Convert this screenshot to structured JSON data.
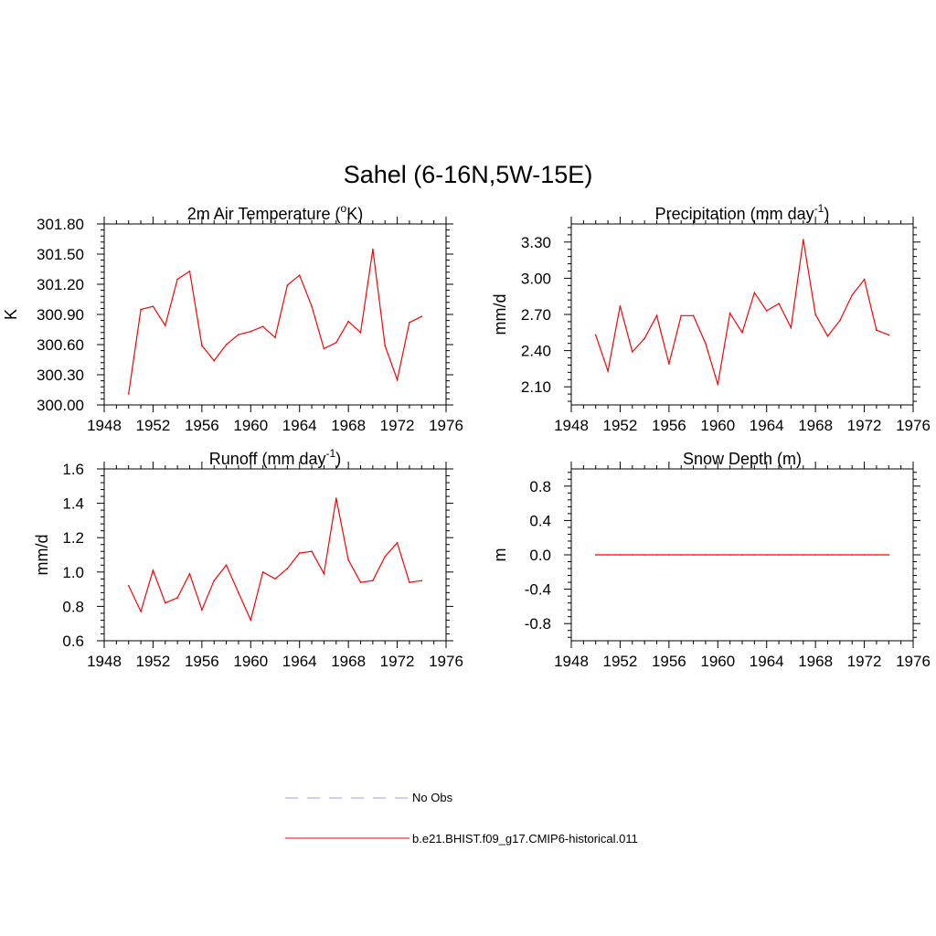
{
  "figure": {
    "title": "Sahel (6-16N,5W-15E)"
  },
  "colors": {
    "series": "#ff0000",
    "obs": "#9999ff",
    "axis": "#000000"
  },
  "legend": {
    "placement": "bottom-center",
    "entries": [
      {
        "label": "No Obs",
        "style": "dashed",
        "color": "#9999ff"
      },
      {
        "label": "b.e21.BHIST.f09_g17.CMIP6-historical.011",
        "style": "solid",
        "color": "#ff0000"
      }
    ]
  },
  "chart_data": [
    {
      "type": "line",
      "title": "2m Air Temperature (",
      "title_super": "o",
      "title_tail": "K)",
      "xlabel": "",
      "ylabel": "K",
      "xlim": [
        1948,
        1976
      ],
      "xticks": [
        "1948",
        "1952",
        "1956",
        "1960",
        "1964",
        "1968",
        "1972",
        "1976"
      ],
      "ylim": [
        300.0,
        301.8
      ],
      "yticks": [
        "300.00",
        "300.30",
        "300.60",
        "300.90",
        "301.20",
        "301.50",
        "301.80"
      ],
      "grid": false,
      "series": [
        {
          "x": [
            1950,
            1951,
            1952,
            1953,
            1954,
            1955,
            1956,
            1957,
            1958,
            1959,
            1960,
            1961,
            1962,
            1963,
            1964,
            1965,
            1966,
            1967,
            1968,
            1969,
            1970,
            1971,
            1972,
            1973,
            1974
          ],
          "values": [
            300.11,
            300.95,
            300.98,
            300.79,
            301.25,
            301.33,
            300.59,
            300.44,
            300.6,
            300.7,
            300.73,
            300.78,
            300.67,
            301.19,
            301.29,
            300.98,
            300.56,
            300.62,
            300.83,
            300.72,
            301.55,
            300.59,
            300.25,
            300.82,
            300.88
          ]
        }
      ]
    },
    {
      "type": "line",
      "title": "Precipitation (mm day",
      "title_super": "-1",
      "title_tail": ")",
      "xlabel": "",
      "ylabel": "mm/d",
      "xlim": [
        1948,
        1976
      ],
      "xticks": [
        "1948",
        "1952",
        "1956",
        "1960",
        "1964",
        "1968",
        "1972",
        "1976"
      ],
      "ylim": [
        1.95,
        3.45
      ],
      "yticks": [
        "2.10",
        "2.40",
        "2.70",
        "3.00",
        "3.30"
      ],
      "grid": false,
      "series": [
        {
          "x": [
            1950,
            1951,
            1952,
            1953,
            1954,
            1955,
            1956,
            1957,
            1958,
            1959,
            1960,
            1961,
            1962,
            1963,
            1964,
            1965,
            1966,
            1967,
            1968,
            1969,
            1970,
            1971,
            1972,
            1973,
            1974
          ],
          "values": [
            2.53,
            2.23,
            2.77,
            2.39,
            2.5,
            2.69,
            2.29,
            2.69,
            2.69,
            2.46,
            2.12,
            2.71,
            2.55,
            2.88,
            2.73,
            2.79,
            2.59,
            3.32,
            2.7,
            2.52,
            2.65,
            2.86,
            2.99,
            2.57,
            2.53
          ]
        }
      ]
    },
    {
      "type": "line",
      "title": "Runoff (mm day",
      "title_super": "-1",
      "title_tail": ")",
      "xlabel": "",
      "ylabel": "mm/d",
      "xlim": [
        1948,
        1976
      ],
      "xticks": [
        "1948",
        "1952",
        "1956",
        "1960",
        "1964",
        "1968",
        "1972",
        "1976"
      ],
      "ylim": [
        0.6,
        1.6
      ],
      "yticks": [
        "0.6",
        "0.8",
        "1.0",
        "1.2",
        "1.4",
        "1.6"
      ],
      "grid": false,
      "series": [
        {
          "x": [
            1950,
            1951,
            1952,
            1953,
            1954,
            1955,
            1956,
            1957,
            1958,
            1959,
            1960,
            1961,
            1962,
            1963,
            1964,
            1965,
            1966,
            1967,
            1968,
            1969,
            1970,
            1971,
            1972,
            1973,
            1974
          ],
          "values": [
            0.92,
            0.77,
            1.01,
            0.82,
            0.85,
            0.99,
            0.78,
            0.95,
            1.04,
            0.88,
            0.72,
            1.0,
            0.96,
            1.02,
            1.11,
            1.12,
            0.99,
            1.43,
            1.07,
            0.94,
            0.95,
            1.09,
            1.17,
            0.94,
            0.95
          ]
        }
      ]
    },
    {
      "type": "line",
      "title": "Snow Depth (m)",
      "title_super": "",
      "title_tail": "",
      "xlabel": "",
      "ylabel": "m",
      "xlim": [
        1948,
        1976
      ],
      "xticks": [
        "1948",
        "1952",
        "1956",
        "1960",
        "1964",
        "1968",
        "1972",
        "1976"
      ],
      "ylim": [
        -1.0,
        1.0
      ],
      "yticks": [
        "-0.8",
        "-0.4",
        "0.0",
        "0.4",
        "0.8"
      ],
      "grid": false,
      "series": [
        {
          "x": [
            1950,
            1951,
            1952,
            1953,
            1954,
            1955,
            1956,
            1957,
            1958,
            1959,
            1960,
            1961,
            1962,
            1963,
            1964,
            1965,
            1966,
            1967,
            1968,
            1969,
            1970,
            1971,
            1972,
            1973,
            1974
          ],
          "values": [
            0,
            0,
            0,
            0,
            0,
            0,
            0,
            0,
            0,
            0,
            0,
            0,
            0,
            0,
            0,
            0,
            0,
            0,
            0,
            0,
            0,
            0,
            0,
            0,
            0
          ]
        }
      ]
    }
  ]
}
